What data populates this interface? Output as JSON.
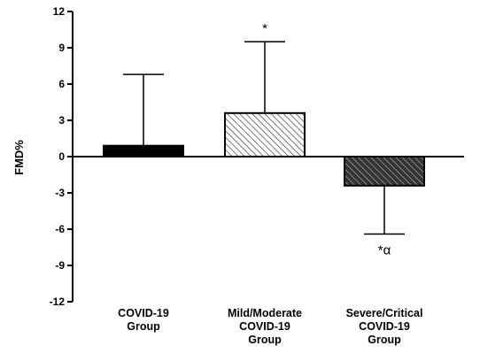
{
  "chart_data": {
    "type": "bar",
    "title": "",
    "xlabel": "",
    "ylabel": "FMD%",
    "ylim": [
      -12,
      12
    ],
    "yticks": [
      12,
      9,
      6,
      3,
      0,
      -3,
      -6,
      -9,
      -12
    ],
    "categories": [
      [
        "COVID-19",
        "Group"
      ],
      [
        "Mild/Moderate",
        "COVID-19",
        "Group"
      ],
      [
        "Severe/Critical",
        "COVID-19",
        "Group"
      ]
    ],
    "values": [
      0.9,
      3.6,
      -2.4
    ],
    "error_bars": [
      6.8,
      9.5,
      -6.4
    ],
    "fills": [
      "solid-black",
      "light-hatch",
      "dark-hatch"
    ],
    "annotations": [
      "",
      "*",
      "*α"
    ],
    "grid": false,
    "legend": "none"
  }
}
